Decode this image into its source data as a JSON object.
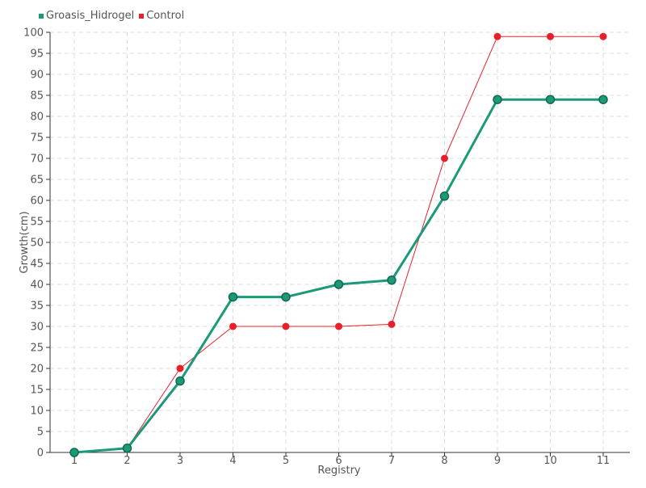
{
  "chart_data": {
    "type": "line",
    "title": "",
    "xlabel": "Registry",
    "ylabel": "Growth(cm)",
    "x": [
      1,
      2,
      3,
      4,
      5,
      6,
      7,
      8,
      9,
      10,
      11
    ],
    "x_tick_labels": [
      "1",
      "2",
      "3",
      "4",
      "5",
      "6",
      "7",
      "8",
      "9",
      "10",
      "11"
    ],
    "ylim": [
      0,
      100
    ],
    "y_ticks": [
      0,
      5,
      10,
      15,
      20,
      25,
      30,
      35,
      40,
      45,
      50,
      55,
      60,
      65,
      70,
      75,
      80,
      85,
      90,
      95,
      100
    ],
    "grid": true,
    "legend_position": "top-left",
    "series": [
      {
        "name": "Groasis_Hidrogel",
        "color": "#1a9a78",
        "values": [
          0,
          1,
          17,
          37,
          37,
          40,
          41,
          61,
          84,
          84,
          84
        ]
      },
      {
        "name": "Control",
        "color": "#e8202a",
        "values": [
          0,
          1,
          20,
          30,
          30,
          30,
          30.5,
          70,
          99,
          99,
          99
        ]
      }
    ]
  }
}
